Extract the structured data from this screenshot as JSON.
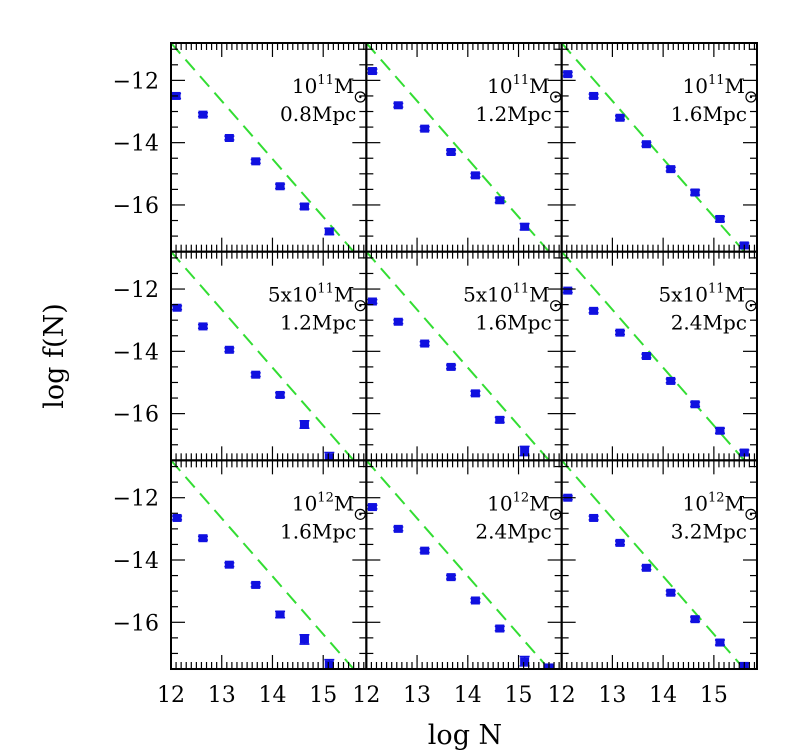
{
  "colors": {
    "points": "#1010e0",
    "model_line": "#33dd33",
    "frame": "#000000"
  },
  "axes": {
    "xlabel": "log N",
    "ylabel": "log f(N)",
    "xlim": [
      12,
      15.85
    ],
    "ylim": [
      -17.5,
      -10.8
    ],
    "x_ticks": [
      12,
      13,
      14,
      15
    ],
    "x_tick_labels": [
      "12",
      "13",
      "14",
      "15"
    ],
    "y_ticks": [
      -12,
      -14,
      -16
    ],
    "y_tick_labels": [
      "−12",
      "−14",
      "−16"
    ]
  },
  "chart_data": [
    {
      "type": "scatter",
      "row": 0,
      "col": 0,
      "label_mass": "10",
      "label_exp": "11",
      "label_unit": "M",
      "label_dist": "0.8Mpc",
      "points": [
        [
          12.1,
          -12.5
        ],
        [
          12.63,
          -13.1
        ],
        [
          13.15,
          -13.85
        ],
        [
          13.67,
          -14.6
        ],
        [
          14.15,
          -15.4
        ],
        [
          14.63,
          -16.05
        ],
        [
          15.12,
          -16.85
        ]
      ],
      "errors": [
        0.08,
        0.06,
        0.06,
        0.06,
        0.07,
        0.08,
        0.1
      ],
      "line": [
        [
          12.0,
          -10.8
        ],
        [
          15.6,
          -17.5
        ]
      ]
    },
    {
      "type": "scatter",
      "row": 0,
      "col": 1,
      "label_mass": "10",
      "label_exp": "11",
      "label_unit": "M",
      "label_dist": "1.2Mpc",
      "points": [
        [
          12.12,
          -11.7
        ],
        [
          12.63,
          -12.8
        ],
        [
          13.15,
          -13.55
        ],
        [
          13.67,
          -14.3
        ],
        [
          14.15,
          -15.05
        ],
        [
          14.63,
          -15.85
        ],
        [
          15.12,
          -16.7
        ]
      ],
      "errors": [
        0.06,
        0.06,
        0.06,
        0.06,
        0.06,
        0.07,
        0.1
      ],
      "line": [
        [
          12.0,
          -10.8
        ],
        [
          15.6,
          -17.5
        ]
      ]
    },
    {
      "type": "scatter",
      "row": 0,
      "col": 2,
      "label_mass": "10",
      "label_exp": "11",
      "label_unit": "M",
      "label_dist": "1.6Mpc",
      "points": [
        [
          12.12,
          -11.8
        ],
        [
          12.63,
          -12.5
        ],
        [
          13.15,
          -13.2
        ],
        [
          13.67,
          -14.05
        ],
        [
          14.15,
          -14.85
        ],
        [
          14.63,
          -15.6
        ],
        [
          15.12,
          -16.45
        ],
        [
          15.6,
          -17.3
        ]
      ],
      "errors": [
        0.06,
        0.06,
        0.06,
        0.06,
        0.06,
        0.08,
        0.08,
        0.08
      ],
      "line": [
        [
          12.0,
          -10.8
        ],
        [
          15.6,
          -17.5
        ]
      ]
    },
    {
      "type": "scatter",
      "row": 1,
      "col": 0,
      "label_mass": "5x10",
      "label_exp": "11",
      "label_unit": "M",
      "label_dist": "1.2Mpc",
      "points": [
        [
          12.12,
          -12.6
        ],
        [
          12.63,
          -13.2
        ],
        [
          13.15,
          -13.95
        ],
        [
          13.67,
          -14.75
        ],
        [
          14.15,
          -15.4
        ],
        [
          14.63,
          -16.35
        ],
        [
          15.12,
          -17.4
        ]
      ],
      "errors": [
        0.06,
        0.06,
        0.06,
        0.06,
        0.07,
        0.12,
        0.15
      ],
      "line": [
        [
          12.0,
          -10.8
        ],
        [
          15.6,
          -17.5
        ]
      ]
    },
    {
      "type": "scatter",
      "row": 1,
      "col": 1,
      "label_mass": "5x10",
      "label_exp": "11",
      "label_unit": "M",
      "label_dist": "1.6Mpc",
      "points": [
        [
          12.12,
          -12.4
        ],
        [
          12.63,
          -13.05
        ],
        [
          13.15,
          -13.75
        ],
        [
          13.67,
          -14.5
        ],
        [
          14.15,
          -15.35
        ],
        [
          14.63,
          -16.2
        ],
        [
          15.12,
          -17.2
        ]
      ],
      "errors": [
        0.06,
        0.06,
        0.06,
        0.06,
        0.07,
        0.08,
        0.15
      ],
      "line": [
        [
          12.0,
          -10.8
        ],
        [
          15.6,
          -17.5
        ]
      ]
    },
    {
      "type": "scatter",
      "row": 1,
      "col": 2,
      "label_mass": "5x10",
      "label_exp": "11",
      "label_unit": "M",
      "label_dist": "2.4Mpc",
      "points": [
        [
          12.12,
          -12.05
        ],
        [
          12.63,
          -12.7
        ],
        [
          13.15,
          -13.4
        ],
        [
          13.67,
          -14.15
        ],
        [
          14.15,
          -14.95
        ],
        [
          14.63,
          -15.7
        ],
        [
          15.12,
          -16.55
        ],
        [
          15.6,
          -17.25
        ]
      ],
      "errors": [
        0.06,
        0.06,
        0.06,
        0.06,
        0.06,
        0.07,
        0.08,
        0.08
      ],
      "line": [
        [
          12.0,
          -10.8
        ],
        [
          15.6,
          -17.5
        ]
      ]
    },
    {
      "type": "scatter",
      "row": 2,
      "col": 0,
      "label_mass": "10",
      "label_exp": "12",
      "label_unit": "M",
      "label_dist": "1.6Mpc",
      "points": [
        [
          12.12,
          -12.65
        ],
        [
          12.63,
          -13.3
        ],
        [
          13.15,
          -14.15
        ],
        [
          13.67,
          -14.8
        ],
        [
          14.15,
          -15.75
        ],
        [
          14.63,
          -16.55
        ],
        [
          15.12,
          -17.35
        ]
      ],
      "errors": [
        0.06,
        0.06,
        0.06,
        0.06,
        0.1,
        0.15,
        0.15
      ],
      "line": [
        [
          12.0,
          -10.8
        ],
        [
          15.6,
          -17.5
        ]
      ]
    },
    {
      "type": "scatter",
      "row": 2,
      "col": 1,
      "label_mass": "10",
      "label_exp": "12",
      "label_unit": "M",
      "label_dist": "2.4Mpc",
      "points": [
        [
          12.12,
          -12.3
        ],
        [
          12.63,
          -13.0
        ],
        [
          13.15,
          -13.7
        ],
        [
          13.67,
          -14.55
        ],
        [
          14.15,
          -15.3
        ],
        [
          14.63,
          -16.2
        ],
        [
          15.12,
          -17.25
        ],
        [
          15.6,
          -17.45
        ]
      ],
      "errors": [
        0.06,
        0.06,
        0.06,
        0.06,
        0.06,
        0.07,
        0.15,
        0.05
      ],
      "line": [
        [
          12.0,
          -10.8
        ],
        [
          15.6,
          -17.5
        ]
      ]
    },
    {
      "type": "scatter",
      "row": 2,
      "col": 2,
      "label_mass": "10",
      "label_exp": "12",
      "label_unit": "M",
      "label_dist": "3.2Mpc",
      "points": [
        [
          12.12,
          -12.0
        ],
        [
          12.63,
          -12.65
        ],
        [
          13.15,
          -13.45
        ],
        [
          13.67,
          -14.25
        ],
        [
          14.15,
          -15.05
        ],
        [
          14.63,
          -15.9
        ],
        [
          15.12,
          -16.65
        ],
        [
          15.6,
          -17.4
        ]
      ],
      "errors": [
        0.06,
        0.06,
        0.06,
        0.06,
        0.06,
        0.07,
        0.08,
        0.08
      ],
      "line": [
        [
          12.0,
          -10.8
        ],
        [
          15.6,
          -17.5
        ]
      ]
    }
  ]
}
